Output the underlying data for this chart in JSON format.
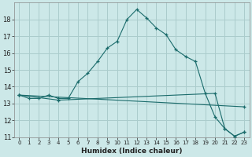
{
  "title": "",
  "xlabel": "Humidex (Indice chaleur)",
  "background_color": "#cce8e8",
  "grid_color": "#aacccc",
  "line_color": "#1a6b6b",
  "xlim": [
    -0.5,
    23.5
  ],
  "ylim": [
    11,
    19
  ],
  "yticks": [
    11,
    12,
    13,
    14,
    15,
    16,
    17,
    18
  ],
  "xticks": [
    0,
    1,
    2,
    3,
    4,
    5,
    6,
    7,
    8,
    9,
    10,
    11,
    12,
    13,
    14,
    15,
    16,
    17,
    18,
    19,
    20,
    21,
    22,
    23
  ],
  "main_line_x": [
    0,
    1,
    2,
    3,
    4,
    5,
    6,
    7,
    8,
    9,
    10,
    11,
    12,
    13,
    14,
    15,
    16,
    17,
    18,
    19,
    20,
    21,
    22,
    23
  ],
  "main_line_y": [
    13.5,
    13.3,
    13.3,
    13.5,
    13.3,
    13.3,
    14.3,
    14.8,
    15.5,
    16.3,
    16.7,
    18.0,
    18.6,
    18.1,
    17.5,
    17.1,
    16.2,
    15.8,
    15.5,
    13.6,
    12.2,
    11.5,
    11.05,
    11.3
  ],
  "line2_x": [
    0,
    4,
    20,
    21,
    22,
    23
  ],
  "line2_y": [
    13.5,
    13.2,
    13.6,
    11.5,
    11.05,
    11.3
  ],
  "line3_x": [
    0,
    23
  ],
  "line3_y": [
    13.5,
    12.8
  ]
}
